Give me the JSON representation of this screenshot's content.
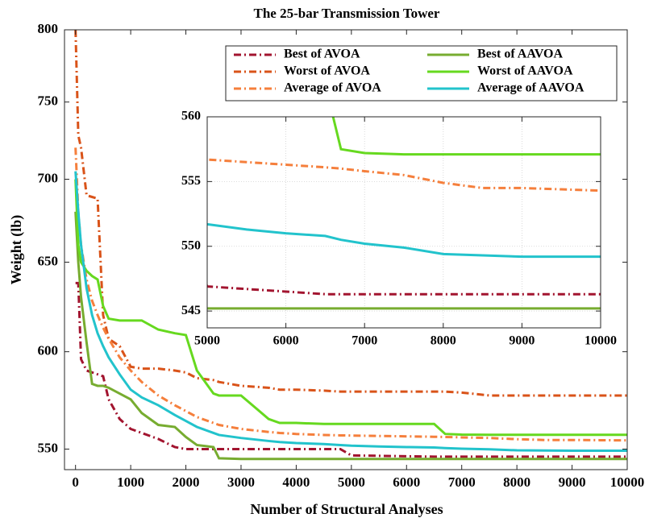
{
  "chart_data": {
    "type": "line",
    "title": "The 25-bar Transmission Tower",
    "xlabel": "Number of Structural Analyses",
    "ylabel": "Weight (lb)",
    "yscale": "log",
    "xlim": [
      -200,
      10000
    ],
    "ylim": [
      540,
      800
    ],
    "xticks": [
      0,
      1000,
      2000,
      3000,
      4000,
      5000,
      6000,
      7000,
      8000,
      9000,
      10000
    ],
    "yticks": [
      550,
      600,
      650,
      700,
      750,
      800
    ],
    "legend": "upper right",
    "x": [
      0,
      50,
      100,
      200,
      300,
      400,
      500,
      600,
      800,
      1000,
      1200,
      1500,
      1800,
      2000,
      2200,
      2500,
      2600,
      3000,
      3500,
      3700,
      4000,
      4500,
      4800,
      5000,
      5500,
      6000,
      6500,
      6700,
      7000,
      7500,
      8000,
      8500,
      9000,
      9500,
      10000
    ],
    "series": [
      {
        "name": "Best of AVOA",
        "color": "#a2142f",
        "style": "dashdot",
        "values": [
          638,
          638,
          596,
          590,
          589,
          588,
          587,
          575,
          565,
          560,
          558,
          555,
          551,
          550,
          550,
          550,
          550,
          550,
          550,
          550,
          550,
          550,
          550,
          546.9,
          546.7,
          546.5,
          546.3,
          546.3,
          546.3,
          546.3,
          546.3,
          546.3,
          546.3,
          546.3,
          546.3
        ]
      },
      {
        "name": "Worst of AVOA",
        "color": "#d95319",
        "style": "dashdot",
        "values": [
          800,
          728,
          720,
          690,
          689,
          688,
          620,
          607,
          603,
          592,
          591,
          591,
          590,
          589,
          586,
          585,
          584,
          582,
          581,
          580,
          580,
          579.5,
          579,
          579,
          579,
          579,
          579,
          579,
          578.5,
          577,
          577,
          577,
          577,
          577,
          577
        ]
      },
      {
        "name": "Average of AVOA",
        "color": "#f57f3c",
        "style": "dashdot",
        "values": [
          720,
          680,
          660,
          640,
          628,
          620,
          613,
          607,
          597,
          590,
          584,
          577,
          572,
          569,
          566,
          563,
          562,
          560,
          558.5,
          558,
          557.5,
          557,
          556.8,
          556.7,
          556.5,
          556.3,
          556.1,
          556,
          555.8,
          555.5,
          554.9,
          554.5,
          554.5,
          554.4,
          554.3
        ]
      },
      {
        "name": "Best of AAVOA",
        "color": "#77ac30",
        "style": "solid",
        "values": [
          680,
          650,
          630,
          605,
          583,
          582,
          582,
          581,
          578,
          575,
          568,
          562,
          561,
          556,
          552,
          551,
          545.5,
          545.2,
          545.2,
          545.2,
          545.2,
          545.2,
          545.2,
          545.2,
          545.2,
          545.2,
          545.2,
          545.2,
          545.2,
          545.2,
          545.2,
          545.2,
          545.2,
          545.2,
          545.2
        ]
      },
      {
        "name": "Worst of AAVOA",
        "color": "#66d91f",
        "style": "solid",
        "values": [
          700,
          660,
          650,
          645,
          642,
          640,
          625,
          618,
          617,
          617,
          617,
          612,
          610,
          609,
          590,
          578,
          577,
          577,
          565,
          563,
          563,
          562.5,
          562.5,
          562.5,
          562.5,
          562.5,
          562.5,
          557.5,
          557.2,
          557.1,
          557.1,
          557.1,
          557.1,
          557.1,
          557.1
        ]
      },
      {
        "name": "Average of AAVOA",
        "color": "#22c3cc",
        "style": "solid",
        "values": [
          705,
          680,
          660,
          635,
          620,
          610,
          603,
          597,
          588,
          580,
          576,
          572,
          567,
          564,
          561,
          558,
          557,
          555.5,
          554,
          553.5,
          553,
          552.5,
          552,
          551.7,
          551.3,
          551,
          550.8,
          550.5,
          550.2,
          549.9,
          549.4,
          549.3,
          549.2,
          549.2,
          549.2
        ]
      }
    ],
    "inset": {
      "xlim": [
        5000,
        10000
      ],
      "ylim": [
        543.7,
        560
      ],
      "xticks": [
        5000,
        6000,
        7000,
        8000,
        9000,
        10000
      ],
      "yticks": [
        545,
        550,
        555,
        560
      ],
      "grid": true
    }
  }
}
